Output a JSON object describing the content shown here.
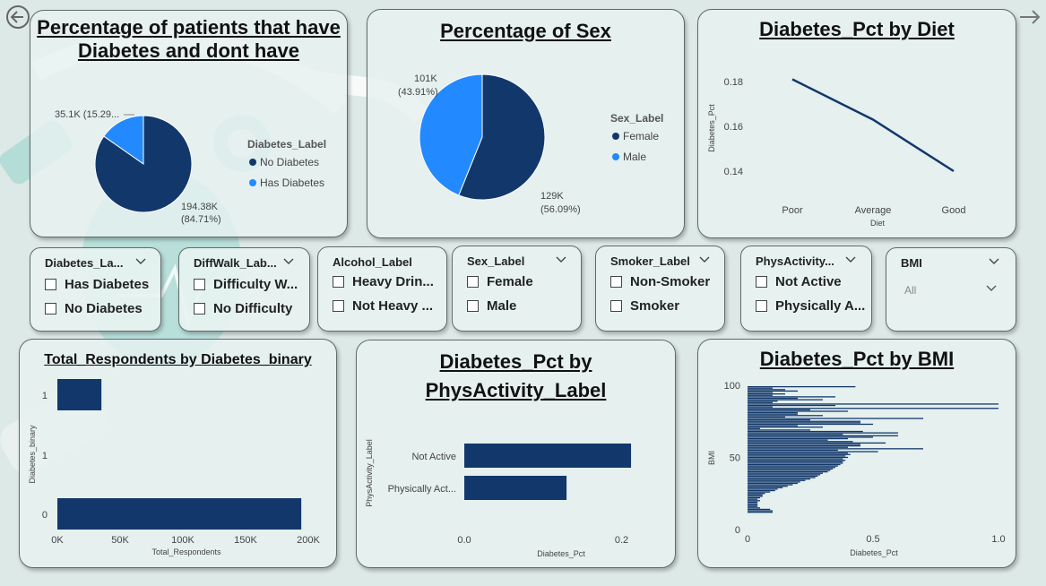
{
  "navigation": {
    "back_icon": "back-arrow-icon",
    "forward_icon": "forward-arrow-icon"
  },
  "colors": {
    "dark_blue": "#12386b",
    "light_blue": "#2389ff",
    "line": "#12386b"
  },
  "cards": {
    "diabetes_pie": {
      "title": "Percentage of patients that have Diabetes and dont have",
      "legend_title": "Diabetes_Label",
      "label_has": "35.1K (15.29...",
      "label_no_1": "194.38K",
      "label_no_2": "(84.71%)"
    },
    "sex_pie": {
      "title": "Percentage of Sex",
      "legend_title": "Sex_Label",
      "label_male_1": "101K",
      "label_male_2": "(43.91%)",
      "label_female_1": "129K",
      "label_female_2": "(56.09%)"
    },
    "diet_line": {
      "title": "Diabetes_Pct by Diet"
    },
    "respondents_bar": {
      "title": "Total_Respondents by Diabetes_binary"
    },
    "physact_bar": {
      "title": "Diabetes_Pct by PhysActivity_Label"
    },
    "bmi_bar": {
      "title": "Diabetes_Pct by BMI"
    }
  },
  "slicers": {
    "diabetes": {
      "header": "Diabetes_La...",
      "options": [
        "Has Diabetes",
        "No Diabetes"
      ]
    },
    "diffwalk": {
      "header": "DiffWalk_Lab...",
      "options": [
        "Difficulty W...",
        "No Difficulty"
      ]
    },
    "alcohol": {
      "header": "Alcohol_Label",
      "options": [
        "Heavy Drin...",
        "Not Heavy ..."
      ]
    },
    "sex": {
      "header": "Sex_Label",
      "options": [
        "Female",
        "Male"
      ]
    },
    "smoker": {
      "header": "Smoker_Label",
      "options": [
        "Non-Smoker",
        "Smoker"
      ]
    },
    "physact": {
      "header": "PhysActivity...",
      "options": [
        "Not Active",
        "Physically A..."
      ]
    },
    "bmi": {
      "header": "BMI",
      "selected": "All"
    }
  },
  "chart_data": [
    {
      "id": "diabetes_pie",
      "type": "pie",
      "title": "Percentage of patients that have Diabetes and dont have",
      "legend_title": "Diabetes_Label",
      "legend_placement": "right",
      "categories": [
        "No Diabetes",
        "Has Diabetes"
      ],
      "values": [
        194380,
        35100
      ],
      "percents": [
        84.71,
        15.29
      ],
      "colors": [
        "#12386b",
        "#2389ff"
      ]
    },
    {
      "id": "sex_pie",
      "type": "pie",
      "title": "Percentage of Sex",
      "legend_title": "Sex_Label",
      "legend_placement": "right",
      "categories": [
        "Female",
        "Male"
      ],
      "values": [
        129000,
        101000
      ],
      "percents": [
        56.09,
        43.91
      ],
      "colors": [
        "#12386b",
        "#2389ff"
      ]
    },
    {
      "id": "diet_line",
      "type": "line",
      "title": "Diabetes_Pct by Diet",
      "xlabel": "Diet",
      "ylabel": "Diabetes_Pct",
      "categories": [
        "Poor",
        "Average",
        "Good"
      ],
      "values": [
        0.181,
        0.163,
        0.14
      ],
      "ylim": [
        0.132,
        0.188
      ],
      "yticks": [
        0.14,
        0.16,
        0.18
      ],
      "ytick_labels": [
        "0.14",
        "0.16",
        "0.18"
      ],
      "grid": false
    },
    {
      "id": "respondents_bar",
      "type": "bar",
      "orientation": "horizontal",
      "title": "Total_Respondents by Diabetes_binary",
      "xlabel": "Total_Respondents",
      "ylabel": "Diabetes_binary",
      "categories": [
        "0",
        "1"
      ],
      "values": [
        194377,
        35097
      ],
      "xlim": [
        0,
        200000
      ],
      "xticks": [
        0,
        50000,
        100000,
        150000,
        200000
      ],
      "xtick_labels": [
        "0K",
        "50K",
        "100K",
        "150K",
        "200K"
      ],
      "ytick_labels": [
        "0",
        "1",
        "1"
      ],
      "grid": false
    },
    {
      "id": "physact_bar",
      "type": "bar",
      "orientation": "horizontal",
      "title": "Diabetes_Pct by PhysActivity_Label",
      "xlabel": "Diabetes_Pct",
      "ylabel": "PhysActivity_Label",
      "categories": [
        "Not Active",
        "Physically Act..."
      ],
      "values": [
        0.212,
        0.13
      ],
      "xlim": [
        0,
        0.245
      ],
      "xticks": [
        0,
        0.2
      ],
      "xtick_labels": [
        "0.0",
        "0.2"
      ],
      "grid": false
    },
    {
      "id": "bmi_bar",
      "type": "bar",
      "orientation": "horizontal",
      "title": "Diabetes_Pct by BMI",
      "xlabel": "Diabetes_Pct",
      "ylabel": "BMI",
      "bmi": [
        12,
        13,
        14,
        15,
        16,
        17,
        18,
        19,
        20,
        21,
        22,
        23,
        24,
        25,
        26,
        27,
        28,
        29,
        30,
        31,
        32,
        33,
        34,
        35,
        36,
        37,
        38,
        39,
        40,
        41,
        42,
        43,
        44,
        45,
        46,
        47,
        48,
        49,
        50,
        51,
        52,
        53,
        54,
        55,
        56,
        57,
        58,
        59,
        60,
        61,
        62,
        63,
        64,
        65,
        66,
        67,
        68,
        69,
        70,
        71,
        72,
        73,
        74,
        75,
        76,
        77,
        78,
        79,
        80,
        81,
        82,
        83,
        84,
        85,
        86,
        87,
        88,
        89,
        90,
        91,
        92,
        93,
        94,
        95,
        96,
        97,
        98,
        99
      ],
      "values": [
        0.1,
        0.1,
        0.09,
        0.05,
        0.04,
        0.04,
        0.04,
        0.04,
        0.05,
        0.04,
        0.05,
        0.06,
        0.06,
        0.07,
        0.09,
        0.11,
        0.12,
        0.14,
        0.16,
        0.18,
        0.2,
        0.21,
        0.23,
        0.25,
        0.27,
        0.28,
        0.29,
        0.3,
        0.32,
        0.33,
        0.34,
        0.35,
        0.36,
        0.37,
        0.38,
        0.38,
        0.39,
        0.38,
        0.4,
        0.39,
        0.41,
        0.4,
        0.52,
        0.36,
        0.7,
        0.4,
        0.45,
        0.45,
        0.55,
        0.42,
        0.32,
        0.4,
        0.5,
        0.6,
        0.38,
        0.6,
        0.46,
        0.25,
        0.05,
        0.3,
        0.2,
        0.5,
        0.45,
        0.45,
        0.25,
        0.7,
        0.15,
        0.3,
        0.2,
        0.2,
        0.4,
        0.25,
        1.0,
        0.1,
        0.35,
        1.0,
        0.1,
        0.12,
        0.3,
        0.2,
        0.35,
        0.1,
        0.15,
        0.1,
        0.2,
        0.15,
        0.1,
        0.43
      ],
      "xlim": [
        0,
        1.0
      ],
      "ylim": [
        0,
        100
      ],
      "xticks": [
        0,
        0.5,
        1.0
      ],
      "xtick_labels": [
        "0",
        "0.5",
        "1.0"
      ],
      "yticks": [
        0,
        50,
        100
      ],
      "ytick_labels": [
        "0",
        "50",
        "100"
      ],
      "grid": false
    }
  ]
}
